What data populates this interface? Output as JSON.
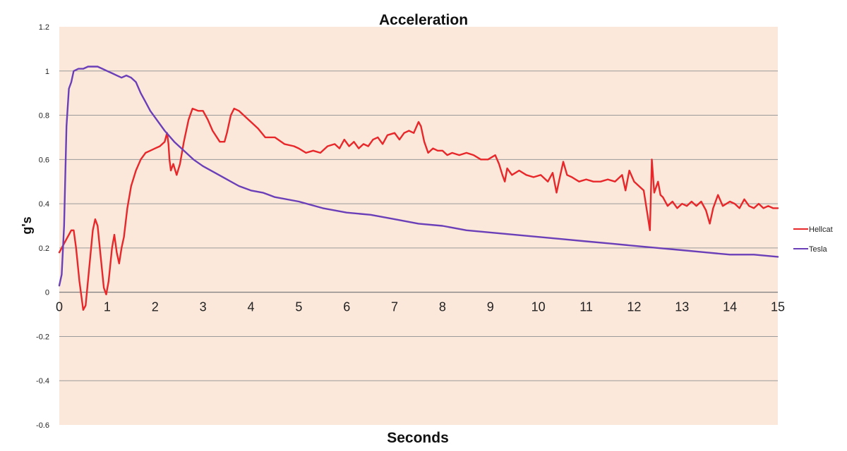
{
  "chart_data": {
    "type": "line",
    "title": "Acceleration",
    "xlabel": "Seconds",
    "ylabel": "g's",
    "xlim": [
      0,
      15
    ],
    "ylim": [
      -0.6,
      1.2
    ],
    "x_ticks": [
      "0",
      "1",
      "2",
      "3",
      "4",
      "5",
      "6",
      "7",
      "8",
      "9",
      "10",
      "11",
      "12",
      "13",
      "14",
      "15"
    ],
    "y_ticks": [
      "1.2",
      "1",
      "0.8",
      "0.6",
      "0.4",
      "0.2",
      "0",
      "-0.2",
      "-0.4",
      "-0.6"
    ],
    "grid": "horizontal",
    "legend_position": "right",
    "plot_background": "#FCE8DA",
    "series": [
      {
        "name": "Hellcat",
        "color": "#E8272A",
        "points": [
          [
            0,
            0.18
          ],
          [
            0.05,
            0.2
          ],
          [
            0.15,
            0.24
          ],
          [
            0.25,
            0.28
          ],
          [
            0.3,
            0.28
          ],
          [
            0.35,
            0.2
          ],
          [
            0.42,
            0.05
          ],
          [
            0.5,
            -0.08
          ],
          [
            0.55,
            -0.06
          ],
          [
            0.62,
            0.1
          ],
          [
            0.7,
            0.28
          ],
          [
            0.75,
            0.33
          ],
          [
            0.8,
            0.3
          ],
          [
            0.87,
            0.15
          ],
          [
            0.93,
            0.02
          ],
          [
            0.98,
            -0.01
          ],
          [
            1.03,
            0.05
          ],
          [
            1.1,
            0.2
          ],
          [
            1.15,
            0.26
          ],
          [
            1.2,
            0.18
          ],
          [
            1.25,
            0.13
          ],
          [
            1.3,
            0.2
          ],
          [
            1.35,
            0.25
          ],
          [
            1.42,
            0.38
          ],
          [
            1.5,
            0.48
          ],
          [
            1.6,
            0.55
          ],
          [
            1.7,
            0.6
          ],
          [
            1.8,
            0.63
          ],
          [
            1.9,
            0.64
          ],
          [
            2.0,
            0.65
          ],
          [
            2.1,
            0.66
          ],
          [
            2.2,
            0.68
          ],
          [
            2.25,
            0.72
          ],
          [
            2.28,
            0.67
          ],
          [
            2.3,
            0.6
          ],
          [
            2.33,
            0.55
          ],
          [
            2.38,
            0.58
          ],
          [
            2.45,
            0.53
          ],
          [
            2.52,
            0.58
          ],
          [
            2.6,
            0.68
          ],
          [
            2.7,
            0.78
          ],
          [
            2.78,
            0.83
          ],
          [
            2.9,
            0.82
          ],
          [
            3.0,
            0.82
          ],
          [
            3.1,
            0.78
          ],
          [
            3.2,
            0.73
          ],
          [
            3.35,
            0.68
          ],
          [
            3.45,
            0.68
          ],
          [
            3.5,
            0.72
          ],
          [
            3.58,
            0.8
          ],
          [
            3.65,
            0.83
          ],
          [
            3.75,
            0.82
          ],
          [
            3.9,
            0.79
          ],
          [
            4.0,
            0.77
          ],
          [
            4.15,
            0.74
          ],
          [
            4.3,
            0.7
          ],
          [
            4.5,
            0.7
          ],
          [
            4.7,
            0.67
          ],
          [
            4.9,
            0.66
          ],
          [
            5.0,
            0.65
          ],
          [
            5.15,
            0.63
          ],
          [
            5.3,
            0.64
          ],
          [
            5.45,
            0.63
          ],
          [
            5.6,
            0.66
          ],
          [
            5.75,
            0.67
          ],
          [
            5.85,
            0.65
          ],
          [
            5.95,
            0.69
          ],
          [
            6.05,
            0.66
          ],
          [
            6.15,
            0.68
          ],
          [
            6.25,
            0.65
          ],
          [
            6.35,
            0.67
          ],
          [
            6.45,
            0.66
          ],
          [
            6.55,
            0.69
          ],
          [
            6.65,
            0.7
          ],
          [
            6.75,
            0.67
          ],
          [
            6.85,
            0.71
          ],
          [
            7.0,
            0.72
          ],
          [
            7.1,
            0.69
          ],
          [
            7.2,
            0.72
          ],
          [
            7.3,
            0.73
          ],
          [
            7.4,
            0.72
          ],
          [
            7.5,
            0.77
          ],
          [
            7.55,
            0.75
          ],
          [
            7.62,
            0.68
          ],
          [
            7.7,
            0.63
          ],
          [
            7.8,
            0.65
          ],
          [
            7.9,
            0.64
          ],
          [
            8.0,
            0.64
          ],
          [
            8.1,
            0.62
          ],
          [
            8.2,
            0.63
          ],
          [
            8.35,
            0.62
          ],
          [
            8.5,
            0.63
          ],
          [
            8.65,
            0.62
          ],
          [
            8.8,
            0.6
          ],
          [
            8.95,
            0.6
          ],
          [
            9.1,
            0.62
          ],
          [
            9.18,
            0.58
          ],
          [
            9.25,
            0.53
          ],
          [
            9.3,
            0.5
          ],
          [
            9.35,
            0.56
          ],
          [
            9.45,
            0.53
          ],
          [
            9.6,
            0.55
          ],
          [
            9.75,
            0.53
          ],
          [
            9.9,
            0.52
          ],
          [
            10.05,
            0.53
          ],
          [
            10.2,
            0.5
          ],
          [
            10.3,
            0.54
          ],
          [
            10.38,
            0.45
          ],
          [
            10.45,
            0.52
          ],
          [
            10.52,
            0.59
          ],
          [
            10.6,
            0.53
          ],
          [
            10.7,
            0.52
          ],
          [
            10.85,
            0.5
          ],
          [
            11.0,
            0.51
          ],
          [
            11.15,
            0.5
          ],
          [
            11.3,
            0.5
          ],
          [
            11.45,
            0.51
          ],
          [
            11.6,
            0.5
          ],
          [
            11.75,
            0.53
          ],
          [
            11.82,
            0.46
          ],
          [
            11.9,
            0.55
          ],
          [
            12.0,
            0.5
          ],
          [
            12.1,
            0.48
          ],
          [
            12.2,
            0.46
          ],
          [
            12.28,
            0.35
          ],
          [
            12.33,
            0.28
          ],
          [
            12.37,
            0.6
          ],
          [
            12.42,
            0.45
          ],
          [
            12.5,
            0.5
          ],
          [
            12.55,
            0.44
          ],
          [
            12.6,
            0.43
          ],
          [
            12.7,
            0.39
          ],
          [
            12.8,
            0.41
          ],
          [
            12.9,
            0.38
          ],
          [
            13.0,
            0.4
          ],
          [
            13.1,
            0.39
          ],
          [
            13.2,
            0.41
          ],
          [
            13.3,
            0.39
          ],
          [
            13.4,
            0.41
          ],
          [
            13.5,
            0.37
          ],
          [
            13.58,
            0.31
          ],
          [
            13.65,
            0.38
          ],
          [
            13.75,
            0.44
          ],
          [
            13.85,
            0.39
          ],
          [
            14.0,
            0.41
          ],
          [
            14.1,
            0.4
          ],
          [
            14.2,
            0.38
          ],
          [
            14.3,
            0.42
          ],
          [
            14.4,
            0.39
          ],
          [
            14.5,
            0.38
          ],
          [
            14.6,
            0.4
          ],
          [
            14.7,
            0.38
          ],
          [
            14.8,
            0.39
          ],
          [
            14.9,
            0.38
          ],
          [
            15.0,
            0.38
          ]
        ]
      },
      {
        "name": "Tesla",
        "color": "#6A3FB8",
        "points": [
          [
            0,
            0.03
          ],
          [
            0.05,
            0.08
          ],
          [
            0.1,
            0.3
          ],
          [
            0.15,
            0.75
          ],
          [
            0.2,
            0.92
          ],
          [
            0.25,
            0.95
          ],
          [
            0.3,
            1.0
          ],
          [
            0.4,
            1.01
          ],
          [
            0.5,
            1.01
          ],
          [
            0.6,
            1.02
          ],
          [
            0.7,
            1.02
          ],
          [
            0.8,
            1.02
          ],
          [
            0.9,
            1.01
          ],
          [
            1.0,
            1.0
          ],
          [
            1.1,
            0.99
          ],
          [
            1.2,
            0.98
          ],
          [
            1.3,
            0.97
          ],
          [
            1.4,
            0.98
          ],
          [
            1.5,
            0.97
          ],
          [
            1.6,
            0.95
          ],
          [
            1.7,
            0.9
          ],
          [
            1.8,
            0.86
          ],
          [
            1.9,
            0.82
          ],
          [
            2.0,
            0.79
          ],
          [
            2.2,
            0.73
          ],
          [
            2.4,
            0.68
          ],
          [
            2.6,
            0.64
          ],
          [
            2.8,
            0.6
          ],
          [
            3.0,
            0.57
          ],
          [
            3.25,
            0.54
          ],
          [
            3.5,
            0.51
          ],
          [
            3.75,
            0.48
          ],
          [
            4.0,
            0.46
          ],
          [
            4.25,
            0.45
          ],
          [
            4.5,
            0.43
          ],
          [
            5.0,
            0.41
          ],
          [
            5.5,
            0.38
          ],
          [
            6.0,
            0.36
          ],
          [
            6.5,
            0.35
          ],
          [
            7.0,
            0.33
          ],
          [
            7.5,
            0.31
          ],
          [
            8.0,
            0.3
          ],
          [
            8.5,
            0.28
          ],
          [
            9.0,
            0.27
          ],
          [
            9.5,
            0.26
          ],
          [
            10.0,
            0.25
          ],
          [
            10.5,
            0.24
          ],
          [
            11.0,
            0.23
          ],
          [
            11.5,
            0.22
          ],
          [
            12.0,
            0.21
          ],
          [
            12.5,
            0.2
          ],
          [
            13.0,
            0.19
          ],
          [
            13.5,
            0.18
          ],
          [
            14.0,
            0.17
          ],
          [
            14.5,
            0.17
          ],
          [
            15.0,
            0.16
          ]
        ]
      }
    ]
  }
}
